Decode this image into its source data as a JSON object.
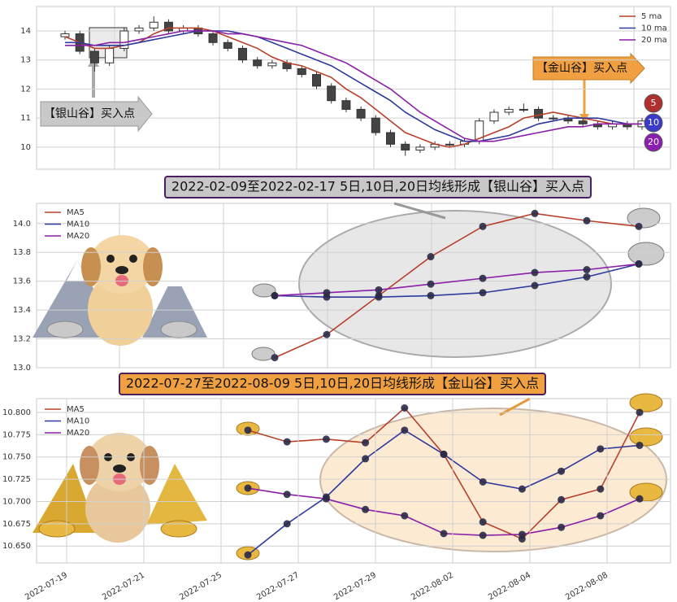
{
  "chart_data": [
    {
      "type": "candlestick",
      "open": [
        13.8,
        13.9,
        13.3,
        12.9,
        13.4,
        14.0,
        14.1,
        14.3,
        14.0,
        14.1,
        13.9,
        13.6,
        13.4,
        13.0,
        12.8,
        12.9,
        12.7,
        12.5,
        12.1,
        11.6,
        11.3,
        11.0,
        10.5,
        10.1,
        9.9,
        10.0,
        10.1,
        10.1,
        10.2,
        10.9,
        11.2,
        11.3,
        11.3,
        11.0,
        11.0,
        10.9,
        10.8,
        10.7,
        10.8,
        10.7
      ],
      "high": [
        14.0,
        14.0,
        13.4,
        13.5,
        14.1,
        14.2,
        14.5,
        14.4,
        14.2,
        14.2,
        14.0,
        13.7,
        13.5,
        13.1,
        13.0,
        13.0,
        12.8,
        12.6,
        12.2,
        11.7,
        11.4,
        11.1,
        10.6,
        10.2,
        10.1,
        10.2,
        10.2,
        10.3,
        11.0,
        11.3,
        11.4,
        11.5,
        11.4,
        11.1,
        11.1,
        11.0,
        10.9,
        10.9,
        10.9,
        11.0
      ],
      "low": [
        13.7,
        13.2,
        12.6,
        12.8,
        13.3,
        13.9,
        14.0,
        13.9,
        13.9,
        13.8,
        13.5,
        13.3,
        12.9,
        12.7,
        12.7,
        12.6,
        12.4,
        12.0,
        11.5,
        11.2,
        10.9,
        10.4,
        10.0,
        9.7,
        9.8,
        9.9,
        10.0,
        10.0,
        10.1,
        10.8,
        11.1,
        11.2,
        10.9,
        10.9,
        10.8,
        10.7,
        10.6,
        10.6,
        10.6,
        10.6
      ],
      "close": [
        13.9,
        13.3,
        12.9,
        13.4,
        14.0,
        14.1,
        14.3,
        14.0,
        14.1,
        13.9,
        13.6,
        13.4,
        13.0,
        12.8,
        12.9,
        12.7,
        12.5,
        12.1,
        11.6,
        11.3,
        11.0,
        10.5,
        10.1,
        9.9,
        10.0,
        10.1,
        10.1,
        10.2,
        10.9,
        11.2,
        11.3,
        11.3,
        11.0,
        11.0,
        10.9,
        10.8,
        10.7,
        10.8,
        10.7,
        10.9
      ],
      "series": [
        {
          "name": "5 ma",
          "color": "#b8402a",
          "values": [
            13.8,
            13.6,
            13.4,
            13.4,
            13.5,
            13.6,
            13.9,
            14.1,
            14.1,
            14.1,
            14.0,
            13.8,
            13.6,
            13.4,
            13.1,
            12.9,
            12.8,
            12.6,
            12.4,
            12.0,
            11.7,
            11.3,
            10.9,
            10.5,
            10.3,
            10.1,
            10.0,
            10.1,
            10.3,
            10.5,
            10.7,
            11.0,
            11.1,
            11.2,
            11.1,
            11.0,
            10.9,
            10.8,
            10.8,
            10.8
          ]
        },
        {
          "name": "10 ma",
          "color": "#2f3a9c",
          "values": [
            13.6,
            13.6,
            13.5,
            13.5,
            13.5,
            13.6,
            13.7,
            13.8,
            13.9,
            14.0,
            14.0,
            14.0,
            13.9,
            13.8,
            13.6,
            13.4,
            13.2,
            13.0,
            12.8,
            12.5,
            12.2,
            11.9,
            11.6,
            11.2,
            10.9,
            10.6,
            10.4,
            10.2,
            10.2,
            10.3,
            10.4,
            10.6,
            10.8,
            10.9,
            11.0,
            11.0,
            11.0,
            10.9,
            10.8,
            10.8
          ]
        },
        {
          "name": "20 ma",
          "color": "#8b1fa8",
          "values": [
            13.5,
            13.5,
            13.5,
            13.6,
            13.6,
            13.7,
            13.8,
            13.9,
            14.0,
            14.0,
            14.0,
            13.9,
            13.9,
            13.8,
            13.7,
            13.6,
            13.5,
            13.3,
            13.1,
            12.9,
            12.6,
            12.3,
            12.0,
            11.6,
            11.2,
            10.9,
            10.6,
            10.3,
            10.2,
            10.2,
            10.3,
            10.4,
            10.5,
            10.6,
            10.7,
            10.7,
            10.8,
            10.8,
            10.8,
            10.8
          ]
        }
      ],
      "ylim": [
        9.24,
        14.84
      ],
      "yticks": [
        10,
        11,
        12,
        13,
        14
      ],
      "grid": true,
      "legend": "upper right",
      "annotations": [
        "【银山谷】买入点",
        "【金山谷】买入点"
      ],
      "badges": [
        {
          "label": "5",
          "color": "#b03030"
        },
        {
          "label": "10",
          "color": "#3a3acb"
        },
        {
          "label": "20",
          "color": "#8a1fb0"
        }
      ]
    },
    {
      "type": "line",
      "title": "2022-02-09至2022-02-17 5日,10日,20日均线形成【银山谷】买入点",
      "series": [
        {
          "name": "MA5",
          "color": "#b8402a",
          "values": [
            13.07,
            13.23,
            13.5,
            13.77,
            13.98,
            14.07,
            14.02,
            13.98
          ]
        },
        {
          "name": "MA10",
          "color": "#2f3a9c",
          "values": [
            13.5,
            13.49,
            13.49,
            13.5,
            13.52,
            13.57,
            13.63,
            13.72
          ]
        },
        {
          "name": "MA20",
          "color": "#8b1fa8",
          "values": [
            13.5,
            13.52,
            13.54,
            13.58,
            13.62,
            13.66,
            13.68,
            13.72
          ]
        }
      ],
      "ylim": [
        13.0,
        14.14
      ],
      "yticks": [
        {
          "value": 13,
          "label": "13.0"
        },
        13.2,
        13.4,
        13.6,
        13.8,
        {
          "value": 14,
          "label": "14.0"
        }
      ],
      "grid": true,
      "legend": "upper left"
    },
    {
      "type": "line",
      "title": "2022-07-27至2022-08-09 5日,10日,20日均线形成【金山谷】买入点",
      "series": [
        {
          "name": "MA5",
          "color": "#b8402a",
          "values": [
            10.78,
            10.767,
            10.77,
            10.766,
            10.805,
            10.753,
            10.677,
            10.658,
            10.702,
            10.714,
            10.8
          ]
        },
        {
          "name": "MA10",
          "color": "#2f3a9c",
          "values": [
            10.64,
            10.675,
            10.705,
            10.748,
            10.78,
            10.753,
            10.722,
            10.714,
            10.734,
            10.759,
            10.763
          ]
        },
        {
          "name": "MA20",
          "color": "#8b1fa8",
          "values": [
            10.715,
            10.708,
            10.703,
            10.691,
            10.684,
            10.664,
            10.662,
            10.663,
            10.671,
            10.684,
            10.703
          ]
        }
      ],
      "ylim": [
        10.631,
        10.8155
      ],
      "yticks": [
        {
          "value": 10.65,
          "label": "10.650"
        },
        {
          "value": 10.675,
          "label": "10.675"
        },
        {
          "value": 10.7,
          "label": "10.700"
        },
        {
          "value": 10.725,
          "label": "10.725"
        },
        {
          "value": 10.75,
          "label": "10.750"
        },
        {
          "value": 10.775,
          "label": "10.775"
        },
        {
          "value": 10.8,
          "label": "10.800"
        }
      ],
      "xticks": [
        "2022-07-19",
        "2022-07-21",
        "2022-07-25",
        "2022-07-27",
        "2022-07-29",
        "2022-08-02",
        "2022-08-04",
        "2022-08-08"
      ],
      "grid": true,
      "legend": "upper left"
    }
  ]
}
